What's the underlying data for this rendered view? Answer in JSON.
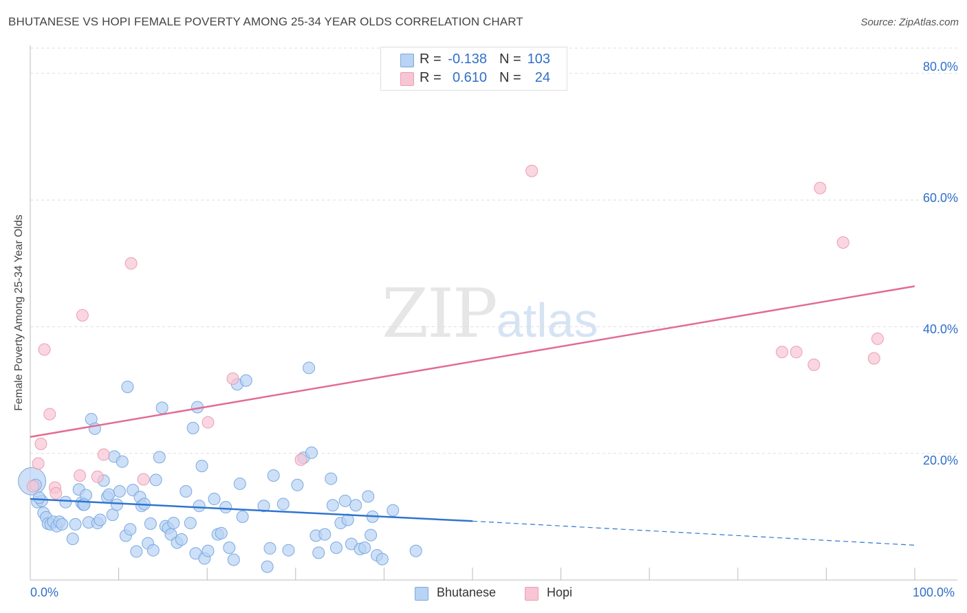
{
  "header": {
    "title": "BHUTANESE VS HOPI FEMALE POVERTY AMONG 25-34 YEAR OLDS CORRELATION CHART",
    "source": "Source: ZipAtlas.com"
  },
  "watermark": {
    "zip": "ZIP",
    "atlas": "atlas"
  },
  "colors": {
    "bhutanese_fill": "#b8d3f3",
    "bhutanese_stroke": "#7aa8e0",
    "bhutanese_line": "#2f74d0",
    "hopi_fill": "#f7c5d3",
    "hopi_stroke": "#eb9db4",
    "hopi_line": "#e36b93",
    "tick_text": "#2f6fc9",
    "grid": "#dddddd"
  },
  "legend_top": {
    "rows": [
      {
        "r_label": "R =",
        "r_value": "-0.138",
        "n_label": "N =",
        "n_value": "103"
      },
      {
        "r_label": "R =",
        "r_value": "0.610",
        "n_label": "N =",
        "n_value": "24"
      }
    ]
  },
  "legend_bottom": {
    "items": [
      "Bhutanese",
      "Hopi"
    ]
  },
  "chart_data": {
    "type": "scatter",
    "title": "BHUTANESE VS HOPI FEMALE POVERTY AMONG 25-34 YEAR OLDS CORRELATION CHART",
    "xlabel": "",
    "ylabel": "Female Poverty Among 25-34 Year Olds",
    "xlim": [
      0,
      100
    ],
    "ylim": [
      0,
      84
    ],
    "x_tick_labels": [
      "0.0%",
      "100.0%"
    ],
    "y_ticks": [
      20,
      40,
      60,
      80
    ],
    "y_tick_labels": [
      "20.0%",
      "40.0%",
      "60.0%",
      "80.0%"
    ],
    "grid": true,
    "legend_position": "top-center",
    "series": [
      {
        "name": "Bhutanese",
        "r": -0.138,
        "n": 103,
        "trend": {
          "x0": 0,
          "y0": 12.8,
          "x1": 50,
          "y1": 9.3,
          "dashed_to_x": 100,
          "dashed_to_y": 5.5
        },
        "points": [
          [
            0.2,
            15.6
          ],
          [
            0.8,
            12.3
          ],
          [
            1.3,
            12.5
          ],
          [
            1.5,
            10.6
          ],
          [
            1.8,
            9.9
          ],
          [
            2.0,
            8.9
          ],
          [
            2.3,
            8.8
          ],
          [
            2.6,
            9.2
          ],
          [
            3.0,
            8.5
          ],
          [
            3.3,
            9.2
          ],
          [
            3.6,
            8.8
          ],
          [
            4.0,
            12.3
          ],
          [
            4.8,
            6.5
          ],
          [
            5.1,
            8.8
          ],
          [
            5.5,
            14.3
          ],
          [
            5.8,
            12.2
          ],
          [
            6.0,
            11.9
          ],
          [
            6.3,
            13.4
          ],
          [
            6.6,
            9.1
          ],
          [
            6.9,
            25.4
          ],
          [
            7.3,
            23.9
          ],
          [
            7.6,
            9.0
          ],
          [
            7.9,
            9.5
          ],
          [
            8.3,
            15.7
          ],
          [
            8.7,
            13.1
          ],
          [
            8.9,
            13.5
          ],
          [
            9.3,
            10.3
          ],
          [
            9.5,
            19.5
          ],
          [
            9.8,
            11.9
          ],
          [
            10.1,
            14.0
          ],
          [
            10.4,
            18.7
          ],
          [
            10.8,
            7.0
          ],
          [
            11.0,
            30.5
          ],
          [
            11.3,
            8.0
          ],
          [
            11.6,
            14.2
          ],
          [
            12.0,
            4.5
          ],
          [
            12.4,
            13.1
          ],
          [
            12.6,
            11.7
          ],
          [
            12.9,
            12.0
          ],
          [
            13.3,
            5.8
          ],
          [
            13.6,
            8.9
          ],
          [
            13.9,
            4.7
          ],
          [
            14.2,
            15.8
          ],
          [
            14.6,
            19.4
          ],
          [
            14.9,
            27.2
          ],
          [
            15.3,
            8.5
          ],
          [
            15.6,
            8.2
          ],
          [
            15.9,
            7.2
          ],
          [
            16.2,
            9.0
          ],
          [
            16.6,
            5.9
          ],
          [
            17.1,
            6.4
          ],
          [
            17.6,
            14.0
          ],
          [
            18.1,
            9.0
          ],
          [
            18.4,
            24.0
          ],
          [
            18.7,
            4.2
          ],
          [
            18.9,
            27.3
          ],
          [
            19.1,
            11.7
          ],
          [
            19.4,
            18.0
          ],
          [
            19.7,
            3.4
          ],
          [
            20.1,
            4.6
          ],
          [
            20.8,
            12.8
          ],
          [
            21.2,
            7.2
          ],
          [
            21.6,
            7.4
          ],
          [
            22.1,
            11.5
          ],
          [
            22.5,
            5.1
          ],
          [
            23.0,
            3.2
          ],
          [
            23.4,
            30.9
          ],
          [
            23.7,
            15.2
          ],
          [
            24.0,
            10.0
          ],
          [
            24.4,
            31.5
          ],
          [
            26.4,
            11.7
          ],
          [
            26.8,
            2.1
          ],
          [
            27.1,
            5.0
          ],
          [
            27.5,
            16.5
          ],
          [
            28.6,
            12.0
          ],
          [
            29.2,
            4.7
          ],
          [
            30.2,
            15.0
          ],
          [
            30.9,
            19.3
          ],
          [
            31.5,
            33.5
          ],
          [
            31.8,
            20.1
          ],
          [
            32.3,
            7.0
          ],
          [
            32.6,
            4.3
          ],
          [
            33.3,
            7.2
          ],
          [
            34.0,
            16.0
          ],
          [
            34.2,
            11.8
          ],
          [
            34.6,
            5.1
          ],
          [
            35.1,
            9.0
          ],
          [
            35.6,
            12.5
          ],
          [
            35.9,
            9.5
          ],
          [
            36.3,
            5.7
          ],
          [
            36.8,
            11.8
          ],
          [
            37.3,
            4.9
          ],
          [
            37.8,
            5.1
          ],
          [
            38.2,
            13.2
          ],
          [
            38.5,
            7.1
          ],
          [
            38.7,
            10.0
          ],
          [
            39.2,
            3.9
          ],
          [
            39.8,
            3.3
          ],
          [
            41.0,
            11.0
          ],
          [
            43.6,
            4.6
          ],
          [
            0.6,
            15.0
          ],
          [
            1.0,
            13.0
          ],
          [
            6.1,
            11.9
          ]
        ]
      },
      {
        "name": "Hopi",
        "r": 0.61,
        "n": 24,
        "trend": {
          "x0": 0,
          "y0": 22.6,
          "x1": 100,
          "y1": 46.4
        },
        "points": [
          [
            0.3,
            14.8
          ],
          [
            0.9,
            18.4
          ],
          [
            1.2,
            21.5
          ],
          [
            1.6,
            36.4
          ],
          [
            2.2,
            26.2
          ],
          [
            2.8,
            14.6
          ],
          [
            2.9,
            13.7
          ],
          [
            5.6,
            16.5
          ],
          [
            5.9,
            41.8
          ],
          [
            7.6,
            16.3
          ],
          [
            8.3,
            19.8
          ],
          [
            11.4,
            50.0
          ],
          [
            12.8,
            15.9
          ],
          [
            20.1,
            24.9
          ],
          [
            22.9,
            31.8
          ],
          [
            30.6,
            19.0
          ],
          [
            56.7,
            64.6
          ],
          [
            85.0,
            36.0
          ],
          [
            86.6,
            36.0
          ],
          [
            88.6,
            34.0
          ],
          [
            89.3,
            61.9
          ],
          [
            91.9,
            53.3
          ],
          [
            95.4,
            35.0
          ],
          [
            95.8,
            38.1
          ]
        ]
      }
    ]
  }
}
